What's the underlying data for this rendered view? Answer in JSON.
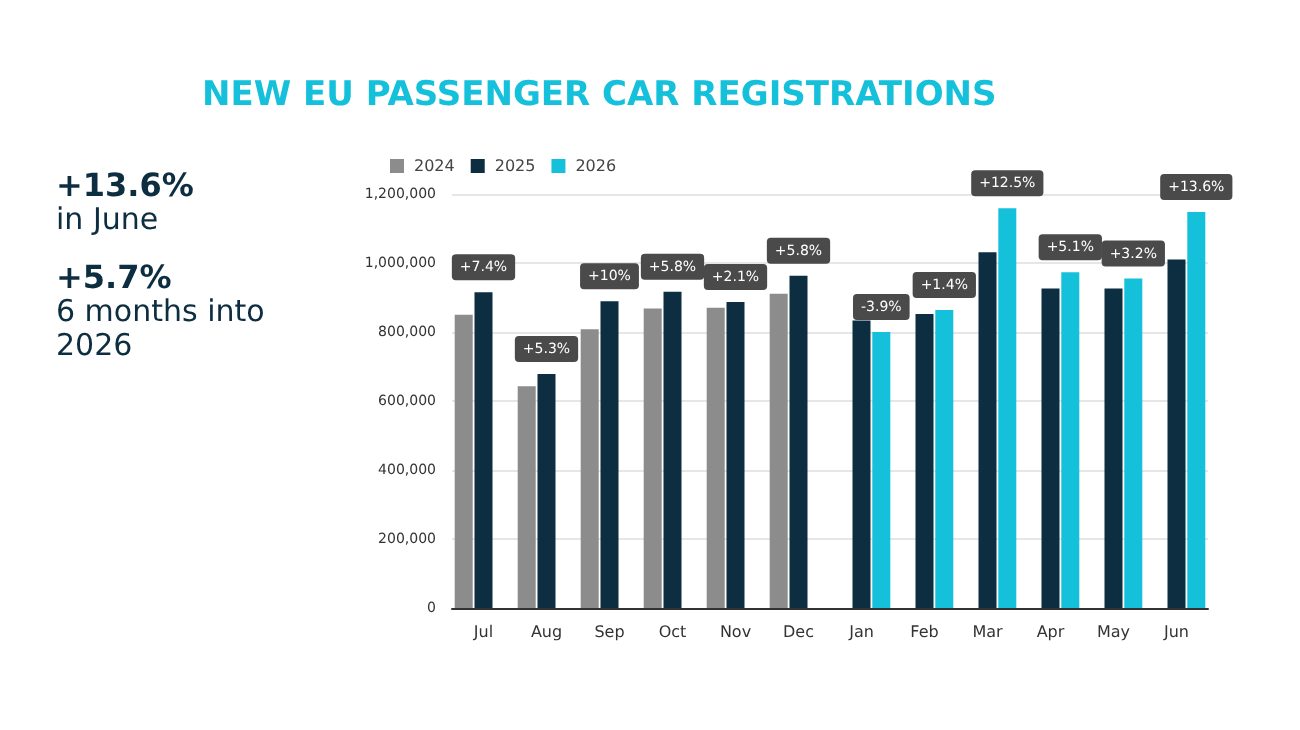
{
  "chart_data": {
    "type": "bar",
    "title": "NEW EU PASSENGER CAR REGISTRATIONS",
    "categories": [
      "Jul",
      "Aug",
      "Sep",
      "Oct",
      "Nov",
      "Dec",
      "Jan",
      "Feb",
      "Mar",
      "Apr",
      "May",
      "Jun"
    ],
    "series": [
      {
        "name": "2024",
        "color": "#8c8c8c",
        "values": [
          850000,
          643000,
          808000,
          868000,
          870000,
          911000,
          null,
          null,
          null,
          null,
          null,
          null
        ]
      },
      {
        "name": "2025",
        "color": "#0d2d40",
        "values": [
          915000,
          678000,
          889000,
          917000,
          887000,
          963000,
          833000,
          852000,
          1031000,
          926000,
          926000,
          1010000
        ]
      },
      {
        "name": "2026",
        "color": "#14c0da",
        "values": [
          null,
          null,
          null,
          null,
          null,
          null,
          800000,
          864000,
          1159000,
          973000,
          955000,
          1148000
        ]
      }
    ],
    "ylim": [
      0,
      1200000
    ],
    "yticks": [
      0,
      {
        "value": 200000,
        "label": "200,000"
      },
      {
        "value": 400000,
        "label": "400,000"
      },
      {
        "value": 600000,
        "label": "600,000"
      },
      {
        "value": 800000,
        "label": "800,000"
      },
      {
        "value": 1000000,
        "label": "1,000,000"
      },
      {
        "value": 1200000,
        "label": "1,200,000"
      }
    ],
    "grid": "y",
    "legend": "top left",
    "annotations": [
      "+13.6%",
      "in June",
      "+5.7%",
      "6 months into 2026",
      "+7.4%",
      "+5.3%",
      "+10%",
      "+5.8%",
      "+2.1%",
      "+5.8%",
      "-3.9%",
      "+1.4%",
      "+12.5%",
      "+5.1%",
      "+3.2%",
      "+13.6%"
    ]
  }
}
